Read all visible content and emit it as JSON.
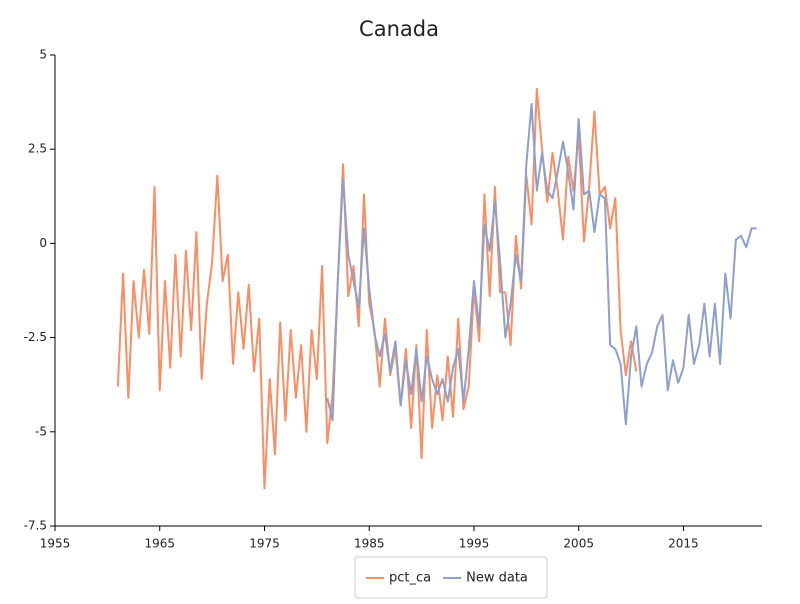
{
  "chart_data": {
    "type": "line",
    "title": "Canada",
    "xlim": [
      1955,
      2022.5
    ],
    "xticks": [
      1955,
      1965,
      1975,
      1985,
      1995,
      2005,
      2015
    ],
    "ylim": [
      -7.5,
      5
    ],
    "yticks": [
      5,
      2.5,
      0,
      -2.5,
      -5,
      -7.5
    ],
    "grid": false,
    "legend": "bottom",
    "series": [
      {
        "name": "pct_ca",
        "color": "#fc8d62",
        "x": [
          1961,
          1961.5,
          1962,
          1962.5,
          1963,
          1963.5,
          1964,
          1964.5,
          1965,
          1965.5,
          1966,
          1966.5,
          1967,
          1967.5,
          1968,
          1968.5,
          1969,
          1969.5,
          1970,
          1970.5,
          1971,
          1971.5,
          1972,
          1972.5,
          1973,
          1973.5,
          1974,
          1974.5,
          1975,
          1975.5,
          1976,
          1976.5,
          1977,
          1977.5,
          1978,
          1978.5,
          1979,
          1979.5,
          1980,
          1980.5,
          1981,
          1981.5,
          1982,
          1982.5,
          1983,
          1983.5,
          1984,
          1984.5,
          1985,
          1985.5,
          1986,
          1986.5,
          1987,
          1987.5,
          1988,
          1988.5,
          1989,
          1989.5,
          1990,
          1990.5,
          1991,
          1991.5,
          1992,
          1992.5,
          1993,
          1993.5,
          1994,
          1994.5,
          1995,
          1995.5,
          1996,
          1996.5,
          1997,
          1997.5,
          1998,
          1998.5,
          1999,
          1999.5,
          2000,
          2000.5,
          2001,
          2001.5,
          2002,
          2002.5,
          2003,
          2003.5,
          2004,
          2004.5,
          2005,
          2005.5,
          2006,
          2006.5,
          2007,
          2007.5,
          2008,
          2008.5,
          2009,
          2009.5,
          2010,
          2010.5
        ],
        "values": [
          -3.8,
          -0.8,
          -4.1,
          -1.0,
          -2.5,
          -0.7,
          -2.4,
          1.5,
          -3.9,
          -1.0,
          -3.3,
          -0.3,
          -3.0,
          -0.2,
          -2.3,
          0.3,
          -3.6,
          -1.6,
          -0.5,
          1.8,
          -1.0,
          -0.3,
          -3.2,
          -1.3,
          -2.8,
          -1.1,
          -3.4,
          -2.0,
          -6.5,
          -3.6,
          -5.6,
          -2.1,
          -4.7,
          -2.3,
          -4.1,
          -2.7,
          -5.0,
          -2.3,
          -3.6,
          -0.6,
          -5.3,
          -4.0,
          -1.0,
          2.1,
          -1.4,
          -0.6,
          -2.2,
          1.3,
          -1.6,
          -2.3,
          -3.8,
          -2.0,
          -3.5,
          -2.8,
          -4.3,
          -2.8,
          -4.9,
          -2.7,
          -5.7,
          -2.3,
          -4.9,
          -3.5,
          -4.7,
          -3.0,
          -4.6,
          -2.0,
          -4.4,
          -3.8,
          -1.2,
          -2.6,
          1.3,
          -1.4,
          1.5,
          -1.3,
          -1.3,
          -2.7,
          0.2,
          -1.2,
          1.8,
          0.5,
          4.1,
          2.5,
          1.1,
          2.4,
          1.4,
          0.1,
          2.3,
          1.4,
          2.9,
          0.05,
          1.5,
          3.5,
          1.3,
          1.5,
          0.4,
          1.2,
          -2.3,
          -3.5,
          -2.6,
          -3.4
        ]
      },
      {
        "name": "New data",
        "color": "#8da0cb",
        "x": [
          1981,
          1981.5,
          1982,
          1982.5,
          1983,
          1983.5,
          1984,
          1984.5,
          1985,
          1985.5,
          1986,
          1986.5,
          1987,
          1987.5,
          1988,
          1988.5,
          1989,
          1989.5,
          1990,
          1990.5,
          1991,
          1991.5,
          1992,
          1992.5,
          1993,
          1993.5,
          1994,
          1994.5,
          1995,
          1995.5,
          1996,
          1996.5,
          1997,
          1997.5,
          1998,
          1998.5,
          1999,
          1999.5,
          2000,
          2000.5,
          2001,
          2001.5,
          2002,
          2002.5,
          2003,
          2003.5,
          2004,
          2004.5,
          2005,
          2005.5,
          2006,
          2006.5,
          2007,
          2007.5,
          2008,
          2008.5,
          2009,
          2009.5,
          2010,
          2010.5,
          2011,
          2011.5,
          2012,
          2012.5,
          2013,
          2013.5,
          2014,
          2014.5,
          2015,
          2015.5,
          2016,
          2016.5,
          2017,
          2017.5,
          2018,
          2018.5,
          2019,
          2019.5,
          2020,
          2020.5,
          2021,
          2021.5,
          2022
        ],
        "values": [
          -4.1,
          -4.7,
          -1.0,
          1.7,
          -0.3,
          -1.0,
          -1.7,
          0.4,
          -1.2,
          -2.4,
          -3.0,
          -2.4,
          -3.4,
          -2.6,
          -4.3,
          -3.1,
          -4.0,
          -2.8,
          -4.2,
          -3.0,
          -3.6,
          -4.0,
          -3.6,
          -4.2,
          -3.3,
          -2.8,
          -4.2,
          -2.8,
          -1.0,
          -2.2,
          0.5,
          -0.2,
          1.1,
          -0.5,
          -2.5,
          -1.6,
          -0.3,
          -1.0,
          2.1,
          3.7,
          1.4,
          2.4,
          1.4,
          1.2,
          1.9,
          2.7,
          1.9,
          0.9,
          3.3,
          1.3,
          1.4,
          0.3,
          1.3,
          1.2,
          -2.7,
          -2.8,
          -3.2,
          -4.8,
          -3.0,
          -2.2,
          -3.8,
          -3.2,
          -2.9,
          -2.2,
          -1.9,
          -3.9,
          -3.1,
          -3.7,
          -3.3,
          -1.9,
          -3.2,
          -2.7,
          -1.6,
          -3.0,
          -1.6,
          -3.2,
          -0.8,
          -2.0,
          0.1,
          0.2,
          -0.1,
          0.4,
          0.4
        ]
      }
    ]
  }
}
